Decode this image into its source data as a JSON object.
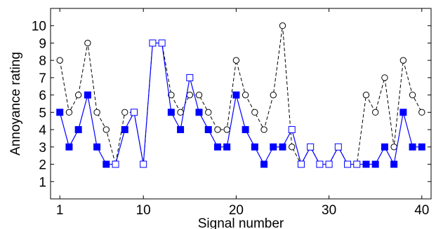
{
  "chart_data": {
    "type": "line",
    "title": "",
    "xlabel": "Signal number",
    "ylabel": "Annoyance rating",
    "xlim": [
      0,
      41
    ],
    "ylim": [
      0,
      11
    ],
    "x_ticks": [
      1,
      10,
      20,
      30,
      40
    ],
    "y_ticks": [
      1,
      2,
      3,
      4,
      5,
      6,
      7,
      8,
      9,
      10
    ],
    "grid": false,
    "legend": "none",
    "x": [
      1,
      2,
      3,
      4,
      5,
      6,
      7,
      8,
      9,
      10,
      11,
      12,
      13,
      14,
      15,
      16,
      17,
      18,
      19,
      20,
      21,
      22,
      23,
      24,
      25,
      26,
      27,
      28,
      29,
      30,
      31,
      32,
      33,
      34,
      35,
      36,
      37,
      38,
      39,
      40
    ],
    "series": [
      {
        "style": "dashed-black-open-circles",
        "color": "#000000",
        "values": [
          8,
          5,
          6,
          9,
          5,
          4,
          2,
          5,
          5,
          2,
          9,
          9,
          6,
          5,
          6,
          6,
          5,
          4,
          4,
          8,
          6,
          5,
          4,
          6,
          10,
          3,
          2,
          3,
          2,
          2,
          3,
          2,
          2,
          6,
          5,
          7,
          3,
          8,
          6,
          5
        ]
      },
      {
        "style": "solid-blue-squares",
        "color": "#0000ff",
        "values": [
          5,
          3,
          4,
          6,
          3,
          2,
          2,
          4,
          5,
          2,
          9,
          9,
          5,
          4,
          7,
          5,
          4,
          3,
          3,
          6,
          4,
          3,
          2,
          3,
          3,
          4,
          2,
          3,
          2,
          2,
          3,
          2,
          2,
          2,
          2,
          3,
          2,
          5,
          3,
          3
        ],
        "open_marker_points": [
          7,
          9,
          10,
          11,
          12,
          15,
          26,
          27,
          28,
          29,
          30,
          31,
          32,
          33
        ]
      }
    ]
  }
}
